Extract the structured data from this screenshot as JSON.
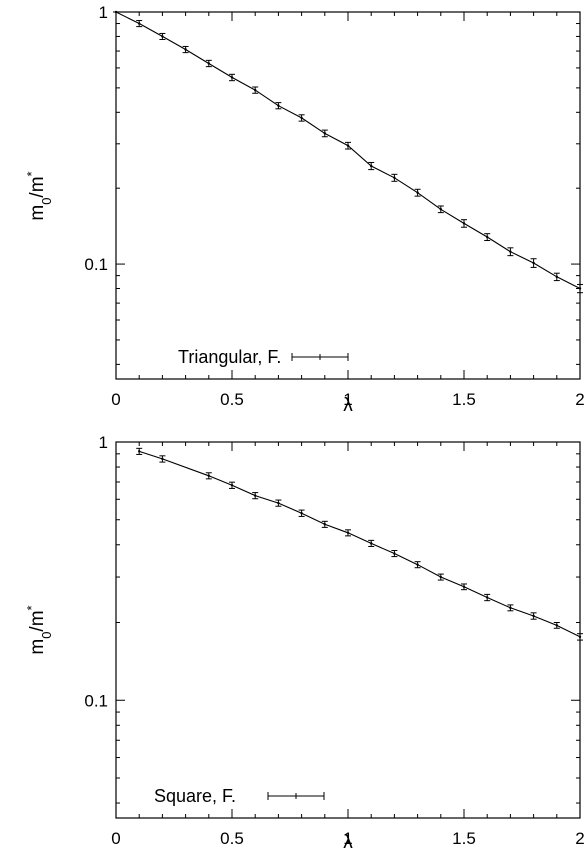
{
  "chart_data": [
    {
      "type": "line",
      "title": "",
      "xlabel": "λ",
      "ylabel_main": "m",
      "ylabel_sub": "0",
      "ylabel_tail": "/m",
      "ylabel_sup": "*",
      "xlim": [
        0,
        2
      ],
      "ylim": [
        0.035,
        1
      ],
      "yscale": "log",
      "x_ticks": [
        0,
        0.5,
        1,
        1.5,
        2
      ],
      "x_tick_labels": [
        "0",
        "0.5",
        "1",
        "1.5",
        "2"
      ],
      "y_tick_labels": [
        {
          "value": 1,
          "label": "1"
        },
        {
          "value": 0.1,
          "label": "0.1"
        }
      ],
      "legend": {
        "label": "Triangular, F.",
        "position": "bottom-left"
      },
      "series": [
        {
          "name": "Triangular, F.",
          "x": [
            0,
            0.1,
            0.2,
            0.3,
            0.4,
            0.5,
            0.6,
            0.7,
            0.8,
            0.9,
            1.0,
            1.1,
            1.2,
            1.3,
            1.4,
            1.5,
            1.6,
            1.7,
            1.8,
            1.9,
            2.0
          ],
          "y": [
            1.0,
            0.9,
            0.8,
            0.71,
            0.625,
            0.55,
            0.49,
            0.425,
            0.38,
            0.33,
            0.295,
            0.245,
            0.22,
            0.192,
            0.165,
            0.145,
            0.128,
            0.112,
            0.101,
            0.089,
            0.08
          ],
          "yerr": [
            0.0,
            0.025,
            0.022,
            0.02,
            0.018,
            0.016,
            0.014,
            0.012,
            0.011,
            0.01,
            0.009,
            0.008,
            0.007,
            0.006,
            0.005,
            0.005,
            0.004,
            0.004,
            0.004,
            0.003,
            0.003
          ]
        }
      ]
    },
    {
      "type": "line",
      "title": "",
      "xlabel": "λ",
      "ylabel_main": "m",
      "ylabel_sub": "0",
      "ylabel_tail": "/m",
      "ylabel_sup": "*",
      "xlim": [
        0,
        2
      ],
      "ylim": [
        0.035,
        1
      ],
      "yscale": "log",
      "x_ticks": [
        0,
        0.5,
        1,
        1.5,
        2
      ],
      "x_tick_labels": [
        "0",
        "0.5",
        "1",
        "1.5",
        "2"
      ],
      "y_tick_labels": [
        {
          "value": 1,
          "label": "1"
        },
        {
          "value": 0.1,
          "label": "0.1"
        }
      ],
      "legend": {
        "label": "Square, F.",
        "position": "bottom-left"
      },
      "series": [
        {
          "name": "Square, F.",
          "x": [
            0.1,
            0.2,
            0.4,
            0.5,
            0.6,
            0.7,
            0.8,
            0.9,
            1.0,
            1.1,
            1.2,
            1.3,
            1.4,
            1.5,
            1.6,
            1.7,
            1.8,
            1.9,
            2.0
          ],
          "y": [
            0.92,
            0.86,
            0.74,
            0.68,
            0.62,
            0.58,
            0.53,
            0.48,
            0.445,
            0.405,
            0.37,
            0.335,
            0.3,
            0.275,
            0.25,
            0.228,
            0.212,
            0.195,
            0.176
          ],
          "yerr": [
            0.025,
            0.024,
            0.02,
            0.019,
            0.017,
            0.016,
            0.015,
            0.013,
            0.012,
            0.011,
            0.01,
            0.009,
            0.008,
            0.007,
            0.007,
            0.006,
            0.006,
            0.005,
            0.005
          ]
        }
      ]
    }
  ]
}
